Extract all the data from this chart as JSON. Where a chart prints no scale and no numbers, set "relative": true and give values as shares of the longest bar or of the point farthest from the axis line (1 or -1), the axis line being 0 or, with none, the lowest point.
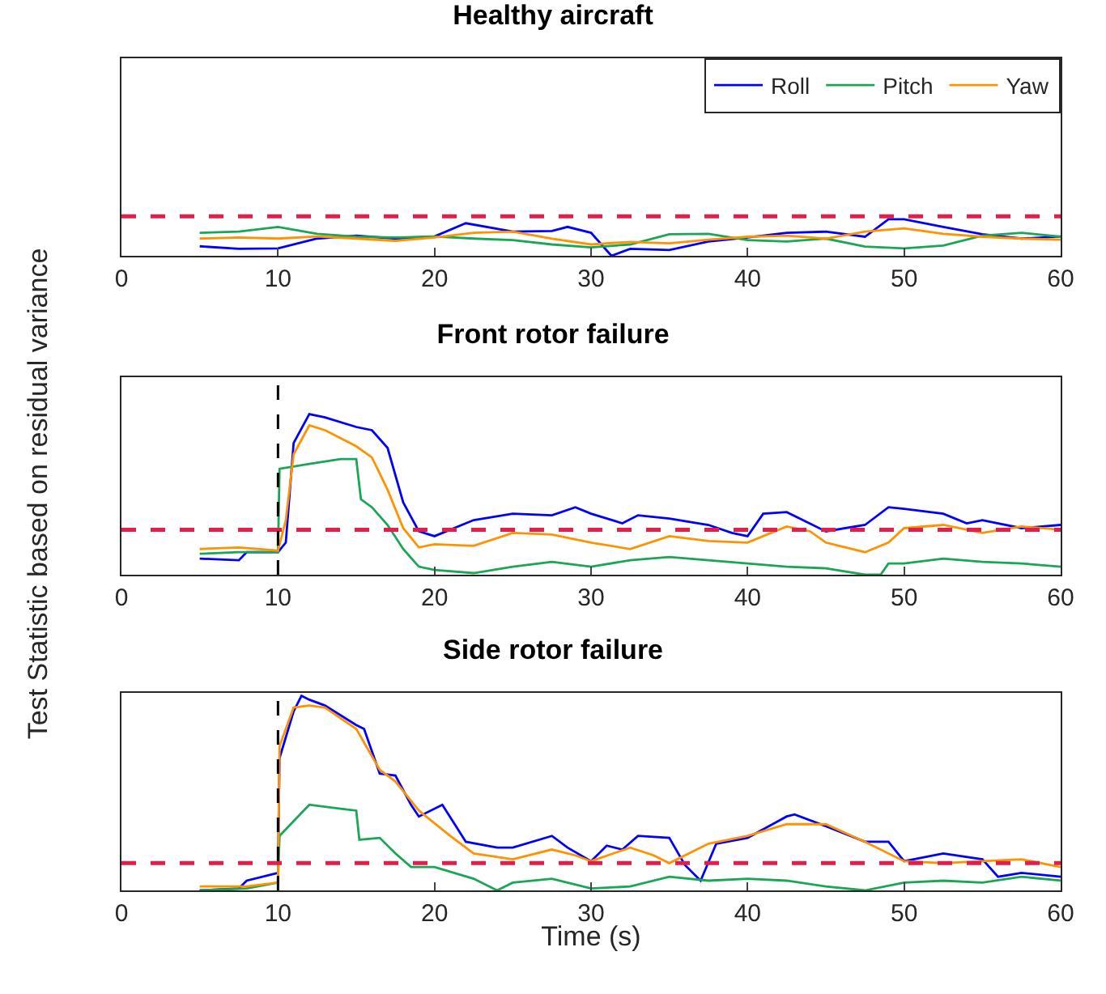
{
  "chart_data": [
    {
      "type": "line",
      "title": "Healthy aircraft",
      "relative": true,
      "xlim": [
        0,
        60
      ],
      "xticks": [
        0,
        10,
        20,
        30,
        40,
        50,
        60
      ],
      "grid": false,
      "legend": "top right",
      "line_style": "solid",
      "marker": "none",
      "ref_lines": [
        {
          "axis": "y",
          "value": 1.08,
          "color": "#e0204a",
          "line_style": "dashed"
        }
      ],
      "x": [
        5,
        7.5,
        10,
        12.5,
        15,
        17.5,
        20,
        22.5,
        25,
        27.5,
        30,
        32.5,
        35,
        37.5,
        40,
        42.5,
        45,
        47.5,
        50,
        52.5,
        55,
        57.5,
        60
      ],
      "series": [
        {
          "name": "Roll",
          "color": "#0000ff",
          "x": [
            5,
            7.5,
            10,
            12.5,
            15,
            17.5,
            20,
            22,
            25,
            27.5,
            28.5,
            30,
            31.3,
            32.5,
            35,
            37.5,
            40,
            42.5,
            45,
            47.5,
            49,
            50,
            52.5,
            55,
            57.5,
            60
          ],
          "values": [
            0.26,
            0.19,
            0.2,
            0.47,
            0.55,
            0.47,
            0.53,
            0.89,
            0.66,
            0.68,
            0.79,
            0.63,
            0,
            0.19,
            0.16,
            0.39,
            0.5,
            0.63,
            0.66,
            0.52,
            1,
            1,
            0.79,
            0.59,
            0.47,
            0.53
          ]
        },
        {
          "name": "Pitch",
          "color": "#1aa655",
          "values": [
            0.63,
            0.66,
            0.79,
            0.6,
            0.52,
            0.5,
            0.53,
            0.47,
            0.43,
            0.31,
            0.23,
            0.31,
            0.59,
            0.6,
            0.43,
            0.39,
            0.47,
            0.25,
            0.2,
            0.28,
            0.55,
            0.63,
            0.52
          ]
        },
        {
          "name": "Yaw",
          "color": "#ff9200",
          "values": [
            0.47,
            0.5,
            0.47,
            0.53,
            0.47,
            0.41,
            0.5,
            0.63,
            0.66,
            0.47,
            0.31,
            0.38,
            0.34,
            0.44,
            0.52,
            0.55,
            0.47,
            0.66,
            0.75,
            0.6,
            0.52,
            0.47,
            0.44
          ]
        }
      ]
    },
    {
      "type": "line",
      "title": "Front rotor failure",
      "ylabel": "Test Statistic based on residual variance",
      "relative": true,
      "xlim": [
        0,
        60
      ],
      "xticks": [
        0,
        10,
        20,
        30,
        40,
        50,
        60
      ],
      "grid": false,
      "legend": false,
      "line_style": "solid",
      "marker": "none",
      "ref_lines": [
        {
          "axis": "y",
          "value": 0.28,
          "color": "#e0204a",
          "line_style": "dashed"
        },
        {
          "axis": "x",
          "value": 10,
          "color": "#000000",
          "line_style": "dashed"
        }
      ],
      "series": [
        {
          "color": "#0000ff",
          "x": [
            5,
            7.5,
            8,
            10,
            10.5,
            11,
            12,
            13,
            15,
            16,
            17,
            18,
            19,
            20,
            22.5,
            25,
            27.5,
            29,
            30,
            32,
            33,
            35,
            37.5,
            39,
            40,
            41,
            42.5,
            45,
            47.5,
            49,
            50,
            52.5,
            54,
            55,
            57.5,
            60
          ],
          "values": [
            0.1,
            0.09,
            0.14,
            0.14,
            0.2,
            0.82,
            1,
            0.98,
            0.92,
            0.9,
            0.79,
            0.45,
            0.27,
            0.24,
            0.34,
            0.38,
            0.37,
            0.42,
            0.38,
            0.32,
            0.37,
            0.35,
            0.31,
            0.26,
            0.24,
            0.38,
            0.39,
            0.27,
            0.31,
            0.42,
            0.41,
            0.38,
            0.32,
            0.34,
            0.29,
            0.31
          ]
        },
        {
          "color": "#1aa655",
          "x": [
            5,
            7.5,
            10,
            10.1,
            12,
            14,
            15,
            15.3,
            16,
            17,
            18,
            19,
            20,
            22.5,
            25,
            27.5,
            30,
            32.5,
            35,
            37.5,
            40,
            42.5,
            45,
            47.5,
            48.5,
            49,
            50,
            52.5,
            55,
            57.5,
            60
          ],
          "values": [
            0.13,
            0.14,
            0.14,
            0.66,
            0.69,
            0.72,
            0.72,
            0.47,
            0.42,
            0.31,
            0.16,
            0.05,
            0.03,
            0.01,
            0.05,
            0.08,
            0.05,
            0.09,
            0.11,
            0.09,
            0.07,
            0.05,
            0.04,
            0,
            0,
            0.07,
            0.07,
            0.1,
            0.08,
            0.07,
            0.05
          ]
        },
        {
          "color": "#ff9200",
          "x": [
            5,
            7.5,
            10,
            10.5,
            11,
            12,
            13,
            15,
            16,
            17,
            18,
            19,
            20,
            22.5,
            25,
            27.5,
            30,
            32.5,
            35,
            37.5,
            40,
            42.5,
            44,
            45,
            47.5,
            49,
            50,
            52.5,
            55,
            57.5,
            60
          ],
          "values": [
            0.16,
            0.17,
            0.15,
            0.34,
            0.75,
            0.93,
            0.9,
            0.8,
            0.73,
            0.53,
            0.29,
            0.17,
            0.19,
            0.18,
            0.26,
            0.25,
            0.2,
            0.16,
            0.24,
            0.21,
            0.2,
            0.3,
            0.27,
            0.2,
            0.14,
            0.2,
            0.29,
            0.31,
            0.26,
            0.3,
            0.28
          ]
        }
      ]
    },
    {
      "type": "line",
      "title": "Side rotor failure",
      "xlabel": "Time (s)",
      "relative": true,
      "xlim": [
        0,
        60
      ],
      "xticks": [
        0,
        10,
        20,
        30,
        40,
        50,
        60
      ],
      "grid": false,
      "legend": false,
      "line_style": "solid",
      "marker": "none",
      "ref_lines": [
        {
          "axis": "y",
          "value": 0.14,
          "color": "#e0204a",
          "line_style": "dashed"
        },
        {
          "axis": "x",
          "value": 10,
          "color": "#000000",
          "line_style": "dashed"
        }
      ],
      "series": [
        {
          "color": "#0000ff",
          "x": [
            5,
            7.5,
            8,
            10,
            10.1,
            11,
            11.5,
            12,
            13,
            15,
            15.5,
            16.5,
            17.5,
            18.5,
            19,
            20.5,
            22,
            24,
            25,
            27.5,
            28.5,
            30,
            31,
            32,
            33,
            35,
            36,
            37,
            38,
            40,
            42.5,
            43,
            45,
            47.5,
            49,
            50,
            52.5,
            55,
            56,
            57.5,
            60
          ],
          "values": [
            0,
            0.01,
            0.05,
            0.09,
            0.68,
            0.92,
            1,
            0.98,
            0.95,
            0.85,
            0.83,
            0.6,
            0.59,
            0.44,
            0.38,
            0.44,
            0.25,
            0.22,
            0.22,
            0.28,
            0.22,
            0.15,
            0.23,
            0.21,
            0.28,
            0.27,
            0.13,
            0.05,
            0.24,
            0.27,
            0.38,
            0.39,
            0.33,
            0.25,
            0.25,
            0.15,
            0.19,
            0.16,
            0.07,
            0.09,
            0.07
          ]
        },
        {
          "color": "#1aa655",
          "x": [
            5,
            8,
            10,
            10.1,
            12,
            14,
            15,
            15.2,
            16.5,
            17.5,
            18.5,
            20,
            22.5,
            24,
            25,
            27.5,
            30,
            32.5,
            35,
            37.5,
            40,
            42.5,
            45,
            47.5,
            50,
            52.5,
            55,
            57.5,
            60
          ],
          "values": [
            0,
            0.01,
            0.04,
            0.28,
            0.44,
            0.42,
            0.41,
            0.26,
            0.27,
            0.19,
            0.12,
            0.12,
            0.06,
            0,
            0.04,
            0.06,
            0.01,
            0.02,
            0.07,
            0.05,
            0.06,
            0.05,
            0.02,
            0,
            0.04,
            0.05,
            0.04,
            0.07,
            0.05
          ]
        },
        {
          "color": "#ff9200",
          "x": [
            5,
            8,
            10,
            10.1,
            11,
            12,
            13,
            15,
            16.5,
            17.5,
            19,
            21,
            22.5,
            25,
            27.5,
            29,
            30,
            32.5,
            34,
            35,
            37.5,
            40,
            42.5,
            45,
            47.5,
            50,
            52.5,
            55,
            57.5,
            60
          ],
          "values": [
            0.02,
            0.02,
            0.04,
            0.74,
            0.94,
            0.95,
            0.94,
            0.83,
            0.62,
            0.56,
            0.41,
            0.28,
            0.19,
            0.16,
            0.21,
            0.18,
            0.15,
            0.22,
            0.18,
            0.14,
            0.24,
            0.28,
            0.34,
            0.34,
            0.25,
            0.15,
            0.14,
            0.15,
            0.16,
            0.12
          ]
        }
      ]
    }
  ]
}
